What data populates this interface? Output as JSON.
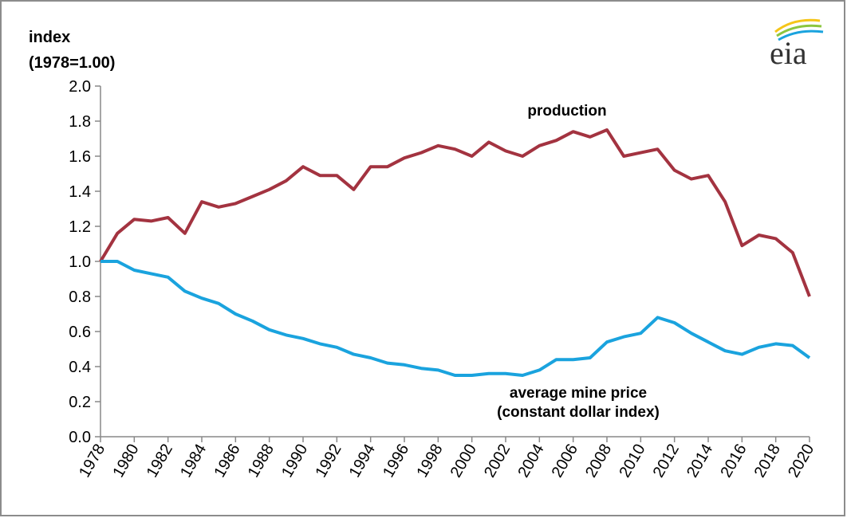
{
  "chart_data": {
    "type": "line",
    "logo": "eia",
    "ylabel": [
      "index",
      "(1978=1.00)"
    ],
    "x": [
      1978,
      1979,
      1980,
      1981,
      1982,
      1983,
      1984,
      1985,
      1986,
      1987,
      1988,
      1989,
      1990,
      1991,
      1992,
      1993,
      1994,
      1995,
      1996,
      1997,
      1998,
      1999,
      2000,
      2001,
      2002,
      2003,
      2004,
      2005,
      2006,
      2007,
      2008,
      2009,
      2010,
      2011,
      2012,
      2013,
      2014,
      2015,
      2016,
      2017,
      2018,
      2019,
      2020
    ],
    "series": [
      {
        "name": "production",
        "color": "#a33340",
        "values": [
          1.0,
          1.16,
          1.24,
          1.23,
          1.25,
          1.16,
          1.34,
          1.31,
          1.33,
          1.37,
          1.41,
          1.46,
          1.54,
          1.49,
          1.49,
          1.41,
          1.54,
          1.54,
          1.59,
          1.62,
          1.66,
          1.64,
          1.6,
          1.68,
          1.63,
          1.6,
          1.66,
          1.69,
          1.74,
          1.71,
          1.75,
          1.6,
          1.62,
          1.64,
          1.52,
          1.47,
          1.49,
          1.34,
          1.09,
          1.15,
          1.13,
          1.05,
          0.8
        ]
      },
      {
        "name": "average mine price (constant dollar index)",
        "color": "#1aa3de",
        "values": [
          1.0,
          1.0,
          0.95,
          0.93,
          0.91,
          0.83,
          0.79,
          0.76,
          0.7,
          0.66,
          0.61,
          0.58,
          0.56,
          0.53,
          0.51,
          0.47,
          0.45,
          0.42,
          0.41,
          0.39,
          0.38,
          0.35,
          0.35,
          0.36,
          0.36,
          0.35,
          0.38,
          0.44,
          0.44,
          0.45,
          0.54,
          0.57,
          0.59,
          0.68,
          0.65,
          0.59,
          0.54,
          0.49,
          0.47,
          0.51,
          0.53,
          0.52,
          0.45
        ]
      }
    ],
    "xlim": [
      1978,
      2020
    ],
    "xticks": [
      1978,
      1980,
      1982,
      1984,
      1986,
      1988,
      1990,
      1992,
      1994,
      1996,
      1998,
      2000,
      2002,
      2004,
      2006,
      2008,
      2010,
      2012,
      2014,
      2016,
      2018,
      2020
    ],
    "ylim": [
      0,
      2
    ],
    "yticks": [
      {
        "value": 0,
        "label": "0.0"
      },
      0.2,
      0.4,
      0.6,
      0.8,
      {
        "value": 1,
        "label": "1.0"
      },
      1.2,
      1.4,
      1.6,
      1.8,
      {
        "value": 2,
        "label": "2.0"
      }
    ],
    "grid": false
  }
}
